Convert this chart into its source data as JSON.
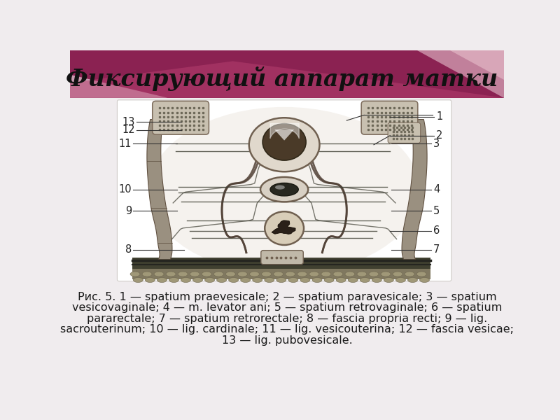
{
  "title": "Фиксирующий аппарат матки",
  "bg_color": "#f0ecee",
  "header_dark": "#8b2252",
  "header_mid": "#a83060",
  "header_light": "#c86080",
  "header_pink": "#d4a0b0",
  "caption_lines": [
    "Рис. 5. 1 — spatium praevesicale; 2 — spatium paravesicale; 3 — spatium",
    "vesicovaginale; 4 — m. levator ani; 5 — spatium retrovaginale; 6 — spatium",
    "pararectale; 7 — spatium retrorectale; 8 — fascia propria recti; 9 — lig.",
    "sacrouterinum; 10 — lig. cardinale; 11 — lig. vesicouterina; 12 — fascia vesicae;",
    "13 — lig. pubovesicale."
  ],
  "caption_fontsize": 11.5,
  "title_fontsize": 24,
  "label_fontsize": 10.5,
  "label_color": "#222222"
}
